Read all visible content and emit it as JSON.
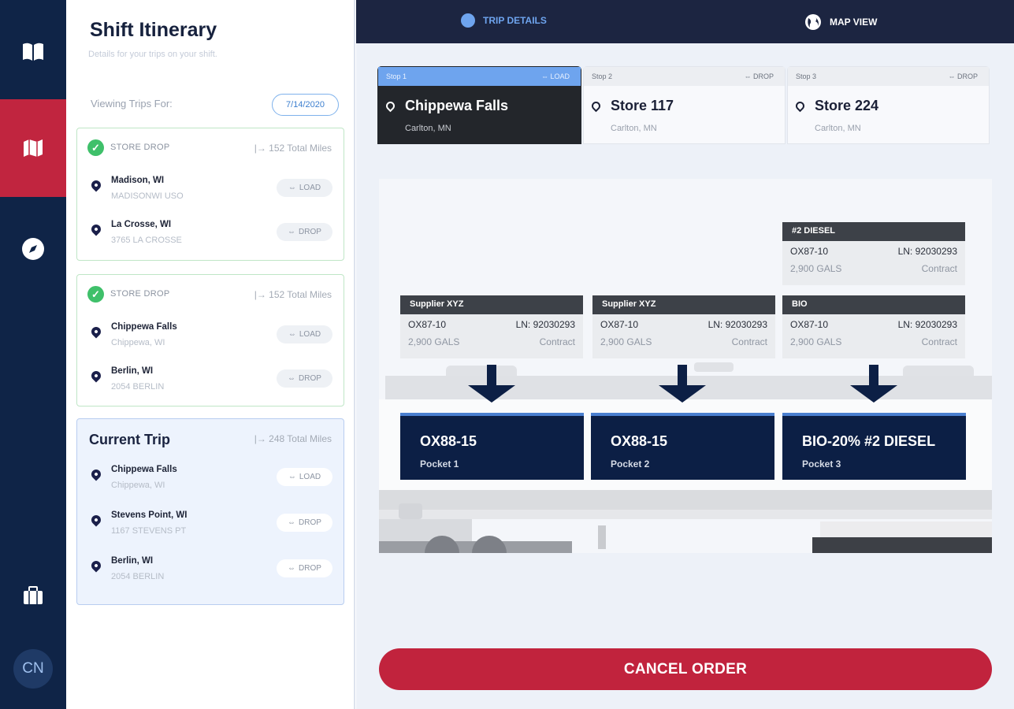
{
  "nav": {
    "items": [
      {
        "icon": "book-icon"
      },
      {
        "icon": "map-icon",
        "active": true
      },
      {
        "icon": "compass-icon"
      },
      {
        "icon": "briefcase-icon"
      }
    ],
    "avatar": "CN"
  },
  "itinerary": {
    "title": "Shift Itinerary",
    "subtitle": "Details for your trips on your shift.",
    "viewing_label": "Viewing Trips For:",
    "date": "7/14/2020",
    "trips": [
      {
        "label": "STORE DROP",
        "miles": "|→ 152 Total Miles",
        "complete": true,
        "stops": [
          {
            "name": "Madison, WI",
            "addr": "MADISONWI USO",
            "type": "LOAD"
          },
          {
            "name": "La Crosse, WI",
            "addr": "3765 LA CROSSE",
            "type": "DROP"
          }
        ]
      },
      {
        "label": "STORE DROP",
        "miles": "|→ 152 Total Miles",
        "complete": true,
        "stops": [
          {
            "name": "Chippewa Falls",
            "addr": "Chippewa, WI",
            "type": "LOAD"
          },
          {
            "name": "Berlin, WI",
            "addr": "2054 BERLIN",
            "type": "DROP"
          }
        ]
      },
      {
        "label": "Current Trip",
        "miles": "|→ 248 Total Miles",
        "complete": false,
        "stops": [
          {
            "name": "Chippewa Falls",
            "addr": "Chippewa, WI",
            "type": "LOAD"
          },
          {
            "name": "Stevens Point, WI",
            "addr": "1167 STEVENS PT",
            "type": "DROP"
          },
          {
            "name": "Berlin, WI",
            "addr": "2054 BERLIN",
            "type": "DROP"
          }
        ]
      }
    ]
  },
  "tabs": {
    "trip_details": "TRIP DETAILS",
    "map_view": "MAP VIEW",
    "active": "trip_details"
  },
  "stops": [
    {
      "step": "Stop 1",
      "type": "LOAD",
      "name": "Chippewa Falls",
      "city": "Carlton, MN",
      "active": true
    },
    {
      "step": "Stop 2",
      "type": "DROP",
      "name": "Store 117",
      "city": "Carlton, MN"
    },
    {
      "step": "Stop 3",
      "type": "DROP",
      "name": "Store 224",
      "city": "Carlton, MN"
    }
  ],
  "suppliers": [
    {
      "name": "Supplier XYZ",
      "product": "OX87-10",
      "ln": "LN: 92030293",
      "qty": "2,900 GALS",
      "terms": "Contract"
    },
    {
      "name": "Supplier XYZ",
      "product": "OX87-10",
      "ln": "LN: 92030293",
      "qty": "2,900 GALS",
      "terms": "Contract"
    },
    {
      "name": "BIO",
      "product": "OX87-10",
      "ln": "LN: 92030293",
      "qty": "2,900 GALS",
      "terms": "Contract"
    },
    {
      "name": "#2 DIESEL",
      "product": "OX87-10",
      "ln": "LN: 92030293",
      "qty": "2,900 GALS",
      "terms": "Contract"
    }
  ],
  "pockets": [
    {
      "product": "OX88-15",
      "label": "Pocket 1"
    },
    {
      "product": "OX88-15",
      "label": "Pocket 2"
    },
    {
      "product": "BIO-20% #2 DIESEL",
      "label": "Pocket 3"
    }
  ],
  "cancel_label": "CANCEL ORDER",
  "colors": {
    "nav": "#0f2447",
    "accent_red": "#c1233d",
    "pocket": "#0c1f45",
    "active_tab": "#6ea4ee",
    "success": "#3fc06a"
  }
}
